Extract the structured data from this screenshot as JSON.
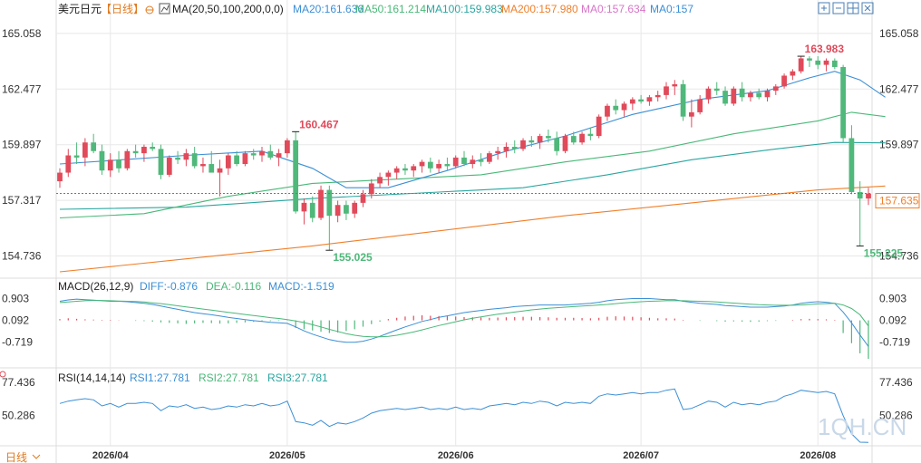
{
  "header": {
    "symbol": "美元日元",
    "period": "【日线】",
    "ma_label": "MA(20,50,100,200,0,0)",
    "ma_values": [
      {
        "text": "MA20:161.636",
        "color": "#3b8fd6"
      },
      {
        "text": "MA50:161.214",
        "color": "#49b878"
      },
      {
        "text": "MA100:159.983",
        "color": "#2aa6a0"
      },
      {
        "text": "MA200:157.980",
        "color": "#f07f2a"
      },
      {
        "text": "MA0:157.634",
        "color": "#d775c8"
      },
      {
        "text": "MA0:157",
        "color": "#3b8fd6"
      }
    ]
  },
  "toolbar_icons": [
    "expand-icon",
    "crosshair-icon",
    "grid-icon",
    "settings-icon"
  ],
  "colors": {
    "up": "#e04a5a",
    "down": "#4fb87a",
    "grid": "#e8e8e8",
    "axis_text": "#333333",
    "price_tag": "#f07f2a",
    "ma20": "#3b8fd6",
    "ma50": "#49b878",
    "ma100": "#2aa6a0",
    "ma200": "#f07f2a"
  },
  "main_axis": {
    "ticks": [
      "165.058",
      "162.477",
      "159.897",
      "157.317",
      "154.736"
    ]
  },
  "current_price": "157.635",
  "annotations": {
    "high1": "160.467",
    "low1": "155.025",
    "high2": "163.983",
    "low2": "155.225"
  },
  "macd": {
    "label": "MACD(26,12,9)",
    "diff": "DIFF:-0.876",
    "dea": "DEA:-0.116",
    "macd": "MACD:-1.519",
    "ticks": [
      "0.903",
      "0.092",
      "-0.719"
    ]
  },
  "rsi": {
    "label": "RSI(14,14,14)",
    "rsi1": "RSI1:27.781",
    "rsi2": "RSI2:27.781",
    "rsi3": "RSI3:27.781",
    "ticks": [
      "77.436",
      "50.286"
    ]
  },
  "x_axis": {
    "labels": [
      "2026/04",
      "2026/05",
      "2026/06",
      "2026/07",
      "2026/08"
    ]
  },
  "footer": {
    "period_button": "日线"
  },
  "watermark": "1QH.CN",
  "chart_data": {
    "type": "candlestick",
    "title": "美元日元",
    "x_labels": [
      "2026/04",
      "2026/05",
      "2026/06",
      "2026/07",
      "2026/08"
    ],
    "ylim": [
      154.0,
      165.6
    ],
    "y_ticks": [
      165.058,
      162.477,
      159.897,
      157.317,
      154.736
    ],
    "reference_line": 157.635,
    "candles_ohlc": [
      [
        158.2,
        158.8,
        157.9,
        158.6
      ],
      [
        158.6,
        159.7,
        158.4,
        159.4
      ],
      [
        159.4,
        160.0,
        159.0,
        159.3
      ],
      [
        159.3,
        160.2,
        158.9,
        160.0
      ],
      [
        160.0,
        160.4,
        159.5,
        159.6
      ],
      [
        159.6,
        159.9,
        158.5,
        158.7
      ],
      [
        158.7,
        159.5,
        158.4,
        159.2
      ],
      [
        159.2,
        159.6,
        158.6,
        158.8
      ],
      [
        158.8,
        159.7,
        158.7,
        159.6
      ],
      [
        159.6,
        159.9,
        159.3,
        159.5
      ],
      [
        159.5,
        159.9,
        159.1,
        159.8
      ],
      [
        159.8,
        160.0,
        159.6,
        159.7
      ],
      [
        159.7,
        159.9,
        158.3,
        158.5
      ],
      [
        158.5,
        159.4,
        158.4,
        159.3
      ],
      [
        159.3,
        159.6,
        159.0,
        159.2
      ],
      [
        159.2,
        159.7,
        158.9,
        159.5
      ],
      [
        159.5,
        159.8,
        158.8,
        158.9
      ],
      [
        158.9,
        159.3,
        158.6,
        159.0
      ],
      [
        159.0,
        159.6,
        158.7,
        158.6
      ],
      [
        158.6,
        159.2,
        157.5,
        158.8
      ],
      [
        158.8,
        159.5,
        158.5,
        159.4
      ],
      [
        159.4,
        159.6,
        158.9,
        159.0
      ],
      [
        159.0,
        159.6,
        158.9,
        159.5
      ],
      [
        159.5,
        159.7,
        159.2,
        159.4
      ],
      [
        159.4,
        159.8,
        159.1,
        159.6
      ],
      [
        159.6,
        159.9,
        159.2,
        159.3
      ],
      [
        159.3,
        159.7,
        158.9,
        159.5
      ],
      [
        159.5,
        160.2,
        159.3,
        160.1
      ],
      [
        160.1,
        160.5,
        156.7,
        156.8
      ],
      [
        156.8,
        157.4,
        156.2,
        157.2
      ],
      [
        157.2,
        157.5,
        156.3,
        156.5
      ],
      [
        156.5,
        158.0,
        156.4,
        157.8
      ],
      [
        157.8,
        158.0,
        155.0,
        156.6
      ],
      [
        156.6,
        157.3,
        156.3,
        157.1
      ],
      [
        157.1,
        157.3,
        156.4,
        156.7
      ],
      [
        156.7,
        157.3,
        156.5,
        157.2
      ],
      [
        157.2,
        157.8,
        157.0,
        157.6
      ],
      [
        157.6,
        158.3,
        157.4,
        158.1
      ],
      [
        158.1,
        158.6,
        157.9,
        158.4
      ],
      [
        158.4,
        158.7,
        158.0,
        158.6
      ],
      [
        158.6,
        158.9,
        158.3,
        158.8
      ],
      [
        158.8,
        159.0,
        158.5,
        158.7
      ],
      [
        158.7,
        159.0,
        158.4,
        158.9
      ],
      [
        158.9,
        159.2,
        158.6,
        159.1
      ],
      [
        159.1,
        159.3,
        158.6,
        158.8
      ],
      [
        158.8,
        159.2,
        158.6,
        159.0
      ],
      [
        159.0,
        159.3,
        158.7,
        158.9
      ],
      [
        158.9,
        159.4,
        158.8,
        159.3
      ],
      [
        159.3,
        159.6,
        158.9,
        159.0
      ],
      [
        159.0,
        159.4,
        158.8,
        159.2
      ],
      [
        159.2,
        159.5,
        158.9,
        159.1
      ],
      [
        159.1,
        159.6,
        159.0,
        159.5
      ],
      [
        159.5,
        159.8,
        159.2,
        159.6
      ],
      [
        159.6,
        160.0,
        159.3,
        159.8
      ],
      [
        159.8,
        160.1,
        159.5,
        159.7
      ],
      [
        159.7,
        160.2,
        159.6,
        160.1
      ],
      [
        160.1,
        160.3,
        159.8,
        160.0
      ],
      [
        160.0,
        160.4,
        159.7,
        160.3
      ],
      [
        160.3,
        160.6,
        160.0,
        160.2
      ],
      [
        160.2,
        160.5,
        159.4,
        159.6
      ],
      [
        159.6,
        160.4,
        159.5,
        160.3
      ],
      [
        160.3,
        160.5,
        159.9,
        160.0
      ],
      [
        160.0,
        160.5,
        159.9,
        160.4
      ],
      [
        160.4,
        160.7,
        160.1,
        160.3
      ],
      [
        160.3,
        161.3,
        160.2,
        161.2
      ],
      [
        161.2,
        161.8,
        161.0,
        161.7
      ],
      [
        161.7,
        162.0,
        161.3,
        161.5
      ],
      [
        161.5,
        161.9,
        161.2,
        161.8
      ],
      [
        161.8,
        162.1,
        161.5,
        162.0
      ],
      [
        162.0,
        162.2,
        161.8,
        161.9
      ],
      [
        161.9,
        162.2,
        161.7,
        162.1
      ],
      [
        162.1,
        162.4,
        161.9,
        162.2
      ],
      [
        162.2,
        162.8,
        162.0,
        162.6
      ],
      [
        162.6,
        162.9,
        162.2,
        162.7
      ],
      [
        162.7,
        162.9,
        161.0,
        161.2
      ],
      [
        161.2,
        162.0,
        160.7,
        161.4
      ],
      [
        161.4,
        162.2,
        161.3,
        162.0
      ],
      [
        162.0,
        162.6,
        161.8,
        162.5
      ],
      [
        162.5,
        162.8,
        162.2,
        162.4
      ],
      [
        162.4,
        162.6,
        161.7,
        161.8
      ],
      [
        161.8,
        162.6,
        161.7,
        162.5
      ],
      [
        162.5,
        162.8,
        161.9,
        162.1
      ],
      [
        162.1,
        162.4,
        161.9,
        162.3
      ],
      [
        162.3,
        162.5,
        162.0,
        162.1
      ],
      [
        162.1,
        162.5,
        161.9,
        162.4
      ],
      [
        162.4,
        162.7,
        162.2,
        162.6
      ],
      [
        162.6,
        163.2,
        162.5,
        163.1
      ],
      [
        163.1,
        163.4,
        162.9,
        163.3
      ],
      [
        163.3,
        164.0,
        163.2,
        163.9
      ],
      [
        163.9,
        164.0,
        163.5,
        163.8
      ],
      [
        163.8,
        164.0,
        163.4,
        163.6
      ],
      [
        163.6,
        163.9,
        163.3,
        163.8
      ],
      [
        163.8,
        163.9,
        163.4,
        163.5
      ],
      [
        163.5,
        163.6,
        160.0,
        160.2
      ],
      [
        160.2,
        160.8,
        157.6,
        157.7
      ],
      [
        157.7,
        158.2,
        155.2,
        157.4
      ],
      [
        157.4,
        157.9,
        157.1,
        157.63
      ]
    ],
    "ma20": [
      [
        0,
        159.0
      ],
      [
        15,
        159.4
      ],
      [
        24,
        159.6
      ],
      [
        30,
        158.8
      ],
      [
        34,
        157.9
      ],
      [
        39,
        157.9
      ],
      [
        46,
        158.7
      ],
      [
        53,
        159.6
      ],
      [
        60,
        160.3
      ],
      [
        68,
        161.3
      ],
      [
        76,
        162.0
      ],
      [
        84,
        162.4
      ],
      [
        89,
        163.0
      ],
      [
        92,
        163.3
      ],
      [
        95,
        162.9
      ],
      [
        98,
        162.1
      ]
    ],
    "ma50": [
      [
        0,
        156.5
      ],
      [
        10,
        156.7
      ],
      [
        20,
        157.5
      ],
      [
        30,
        158.1
      ],
      [
        40,
        158.3
      ],
      [
        50,
        158.5
      ],
      [
        60,
        159.1
      ],
      [
        70,
        159.6
      ],
      [
        80,
        160.4
      ],
      [
        90,
        161.0
      ],
      [
        94,
        161.4
      ],
      [
        98,
        161.2
      ]
    ],
    "ma100": [
      [
        0,
        156.9
      ],
      [
        15,
        157.0
      ],
      [
        30,
        157.4
      ],
      [
        45,
        157.7
      ],
      [
        55,
        157.9
      ],
      [
        65,
        158.5
      ],
      [
        75,
        159.2
      ],
      [
        85,
        159.7
      ],
      [
        92,
        160.0
      ],
      [
        98,
        159.98
      ]
    ],
    "ma200": [
      [
        0,
        154.0
      ],
      [
        15,
        154.6
      ],
      [
        30,
        155.2
      ],
      [
        45,
        155.9
      ],
      [
        60,
        156.6
      ],
      [
        75,
        157.2
      ],
      [
        90,
        157.8
      ],
      [
        98,
        157.98
      ]
    ],
    "macd_hist": [
      0.05,
      0.08,
      0.06,
      0.04,
      0.03,
      0.02,
      0.02,
      0.01,
      0.0,
      -0.02,
      -0.03,
      -0.05,
      -0.08,
      -0.1,
      -0.12,
      -0.14,
      -0.12,
      -0.1,
      -0.11,
      -0.13,
      -0.12,
      -0.1,
      -0.08,
      -0.06,
      -0.04,
      -0.03,
      -0.02,
      -0.01,
      -0.3,
      -0.35,
      -0.4,
      -0.45,
      -0.5,
      -0.48,
      -0.42,
      -0.35,
      -0.25,
      -0.15,
      -0.05,
      0.05,
      0.1,
      0.15,
      0.18,
      0.2,
      0.18,
      0.17,
      0.16,
      0.15,
      0.13,
      0.12,
      0.11,
      0.1,
      0.11,
      0.12,
      0.13,
      0.14,
      0.14,
      0.13,
      0.12,
      0.1,
      0.1,
      0.1,
      0.09,
      0.08,
      0.1,
      0.14,
      0.16,
      0.15,
      0.14,
      0.12,
      0.1,
      0.08,
      0.08,
      0.07,
      0.02,
      0.0,
      -0.02,
      0.0,
      -0.03,
      -0.05,
      -0.04,
      -0.05,
      -0.06,
      -0.05,
      -0.03,
      -0.02,
      0.0,
      0.02,
      0.05,
      0.06,
      0.05,
      0.04,
      0.02,
      -0.5,
      -0.9,
      -1.3,
      -1.519
    ],
    "diff": [
      0.8,
      0.85,
      0.88,
      0.86,
      0.84,
      0.82,
      0.8,
      0.8,
      0.78,
      0.75,
      0.72,
      0.68,
      0.62,
      0.56,
      0.5,
      0.44,
      0.38,
      0.34,
      0.3,
      0.25,
      0.2,
      0.16,
      0.12,
      0.08,
      0.05,
      0.02,
      0.0,
      -0.02,
      -0.15,
      -0.3,
      -0.42,
      -0.52,
      -0.62,
      -0.68,
      -0.72,
      -0.72,
      -0.68,
      -0.6,
      -0.5,
      -0.38,
      -0.26,
      -0.15,
      -0.05,
      0.05,
      0.12,
      0.2,
      0.26,
      0.32,
      0.38,
      0.42,
      0.46,
      0.5,
      0.53,
      0.56,
      0.6,
      0.62,
      0.64,
      0.66,
      0.66,
      0.66,
      0.66,
      0.68,
      0.7,
      0.72,
      0.76,
      0.82,
      0.86,
      0.88,
      0.9,
      0.9,
      0.9,
      0.88,
      0.86,
      0.86,
      0.8,
      0.76,
      0.72,
      0.7,
      0.68,
      0.64,
      0.62,
      0.6,
      0.58,
      0.58,
      0.58,
      0.6,
      0.62,
      0.66,
      0.72,
      0.76,
      0.78,
      0.76,
      0.72,
      0.4,
      0.0,
      -0.45,
      -0.876
    ],
    "dea": [
      0.75,
      0.77,
      0.8,
      0.82,
      0.83,
      0.83,
      0.82,
      0.81,
      0.8,
      0.79,
      0.77,
      0.74,
      0.71,
      0.67,
      0.63,
      0.59,
      0.55,
      0.51,
      0.47,
      0.43,
      0.39,
      0.35,
      0.31,
      0.27,
      0.23,
      0.19,
      0.16,
      0.12,
      0.07,
      0.01,
      -0.07,
      -0.15,
      -0.24,
      -0.32,
      -0.4,
      -0.46,
      -0.5,
      -0.52,
      -0.52,
      -0.5,
      -0.46,
      -0.4,
      -0.34,
      -0.26,
      -0.18,
      -0.1,
      -0.03,
      0.04,
      0.11,
      0.17,
      0.22,
      0.27,
      0.32,
      0.36,
      0.4,
      0.44,
      0.48,
      0.51,
      0.54,
      0.56,
      0.58,
      0.6,
      0.62,
      0.64,
      0.66,
      0.68,
      0.71,
      0.74,
      0.76,
      0.78,
      0.8,
      0.81,
      0.82,
      0.82,
      0.82,
      0.81,
      0.8,
      0.79,
      0.77,
      0.75,
      0.73,
      0.71,
      0.69,
      0.67,
      0.66,
      0.65,
      0.65,
      0.65,
      0.66,
      0.68,
      0.7,
      0.71,
      0.72,
      0.66,
      0.53,
      0.3,
      -0.116
    ],
    "rsi": [
      60,
      62,
      63,
      64,
      63,
      58,
      60,
      57,
      60,
      60,
      61,
      60,
      54,
      58,
      57,
      59,
      56,
      57,
      55,
      56,
      58,
      57,
      59,
      58,
      60,
      58,
      59,
      62,
      45,
      44,
      42,
      46,
      41,
      44,
      43,
      45,
      48,
      52,
      54,
      55,
      56,
      55,
      56,
      57,
      55,
      56,
      55,
      57,
      55,
      56,
      55,
      58,
      59,
      60,
      59,
      61,
      60,
      62,
      61,
      58,
      61,
      60,
      61,
      60,
      66,
      68,
      67,
      68,
      69,
      68,
      69,
      69,
      71,
      72,
      55,
      56,
      59,
      62,
      61,
      57,
      61,
      59,
      60,
      59,
      61,
      62,
      66,
      68,
      71,
      70,
      69,
      70,
      68,
      50,
      35,
      28,
      27.781
    ]
  }
}
